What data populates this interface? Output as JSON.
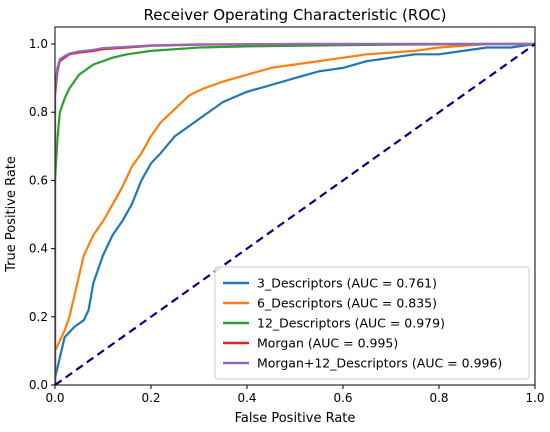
{
  "chart_data": {
    "type": "line",
    "title": "Receiver Operating Characteristic (ROC)",
    "xlabel": "False Positive Rate",
    "ylabel": "True Positive Rate",
    "xlim": [
      0.0,
      1.0
    ],
    "ylim": [
      0.0,
      1.05
    ],
    "xticks": [
      "0.0",
      "0.2",
      "0.4",
      "0.6",
      "0.8",
      "1.0"
    ],
    "xtick_values": [
      0.0,
      0.2,
      0.4,
      0.6,
      0.8,
      1.0
    ],
    "yticks": [
      "0.0",
      "0.2",
      "0.4",
      "0.6",
      "0.8",
      "1.0"
    ],
    "ytick_values": [
      0.0,
      0.2,
      0.4,
      0.6,
      0.8,
      1.0
    ],
    "grid": false,
    "legend_position": "lower-right",
    "series": [
      {
        "name": "3_Descriptors (AUC = 0.761)",
        "color": "#1f77b4",
        "x": [
          0.0,
          0.0,
          0.01,
          0.02,
          0.04,
          0.06,
          0.07,
          0.08,
          0.09,
          0.1,
          0.12,
          0.14,
          0.16,
          0.18,
          0.2,
          0.22,
          0.25,
          0.28,
          0.31,
          0.35,
          0.4,
          0.45,
          0.5,
          0.55,
          0.6,
          0.65,
          0.7,
          0.75,
          0.8,
          0.85,
          0.9,
          0.95,
          1.0
        ],
        "y": [
          0.0,
          0.02,
          0.08,
          0.14,
          0.17,
          0.19,
          0.22,
          0.3,
          0.34,
          0.38,
          0.44,
          0.48,
          0.53,
          0.6,
          0.65,
          0.68,
          0.73,
          0.76,
          0.79,
          0.83,
          0.86,
          0.88,
          0.9,
          0.92,
          0.93,
          0.95,
          0.96,
          0.97,
          0.97,
          0.98,
          0.99,
          0.99,
          1.0
        ]
      },
      {
        "name": "6_Descriptors (AUC = 0.835)",
        "color": "#ff7f0e",
        "x": [
          0.0,
          0.0,
          0.01,
          0.02,
          0.03,
          0.04,
          0.05,
          0.06,
          0.07,
          0.08,
          0.1,
          0.12,
          0.14,
          0.16,
          0.18,
          0.2,
          0.22,
          0.25,
          0.28,
          0.31,
          0.35,
          0.4,
          0.45,
          0.5,
          0.55,
          0.6,
          0.65,
          0.7,
          0.75,
          0.8,
          0.85,
          0.9,
          1.0
        ],
        "y": [
          0.0,
          0.1,
          0.13,
          0.16,
          0.2,
          0.26,
          0.32,
          0.38,
          0.41,
          0.44,
          0.48,
          0.53,
          0.58,
          0.64,
          0.68,
          0.73,
          0.77,
          0.81,
          0.85,
          0.87,
          0.89,
          0.91,
          0.93,
          0.94,
          0.95,
          0.96,
          0.97,
          0.975,
          0.98,
          0.99,
          0.995,
          1.0,
          1.0
        ]
      },
      {
        "name": "12_Descriptors (AUC = 0.979)",
        "color": "#2ca02c",
        "x": [
          0.0,
          0.0,
          0.005,
          0.01,
          0.02,
          0.03,
          0.04,
          0.05,
          0.06,
          0.08,
          0.1,
          0.12,
          0.15,
          0.2,
          0.25,
          0.3,
          0.4,
          0.5,
          0.6,
          0.7,
          0.8,
          0.9,
          1.0
        ],
        "y": [
          0.0,
          0.6,
          0.72,
          0.8,
          0.84,
          0.87,
          0.89,
          0.91,
          0.92,
          0.94,
          0.95,
          0.96,
          0.97,
          0.98,
          0.985,
          0.99,
          0.993,
          0.995,
          0.997,
          0.998,
          0.999,
          1.0,
          1.0
        ]
      },
      {
        "name": "Morgan (AUC = 0.995)",
        "color": "#d62728",
        "x": [
          0.0,
          0.0,
          0.005,
          0.01,
          0.02,
          0.03,
          0.05,
          0.08,
          0.1,
          0.15,
          0.2,
          0.3,
          0.5,
          0.7,
          1.0
        ],
        "y": [
          0.0,
          0.85,
          0.92,
          0.95,
          0.96,
          0.97,
          0.975,
          0.98,
          0.985,
          0.99,
          0.995,
          0.998,
          1.0,
          1.0,
          1.0
        ]
      },
      {
        "name": "Morgan+12_Descriptors (AUC = 0.996)",
        "color": "#9467bd",
        "x": [
          0.0,
          0.0,
          0.005,
          0.01,
          0.02,
          0.03,
          0.05,
          0.08,
          0.1,
          0.15,
          0.2,
          0.3,
          0.5,
          0.7,
          1.0
        ],
        "y": [
          0.0,
          0.87,
          0.93,
          0.955,
          0.965,
          0.972,
          0.978,
          0.983,
          0.988,
          0.992,
          0.996,
          0.999,
          1.0,
          1.0,
          1.0
        ]
      }
    ],
    "reference_line": {
      "x": [
        0.0,
        1.0
      ],
      "y": [
        0.0,
        1.0
      ],
      "color": "#000080",
      "style": "dashed"
    }
  }
}
